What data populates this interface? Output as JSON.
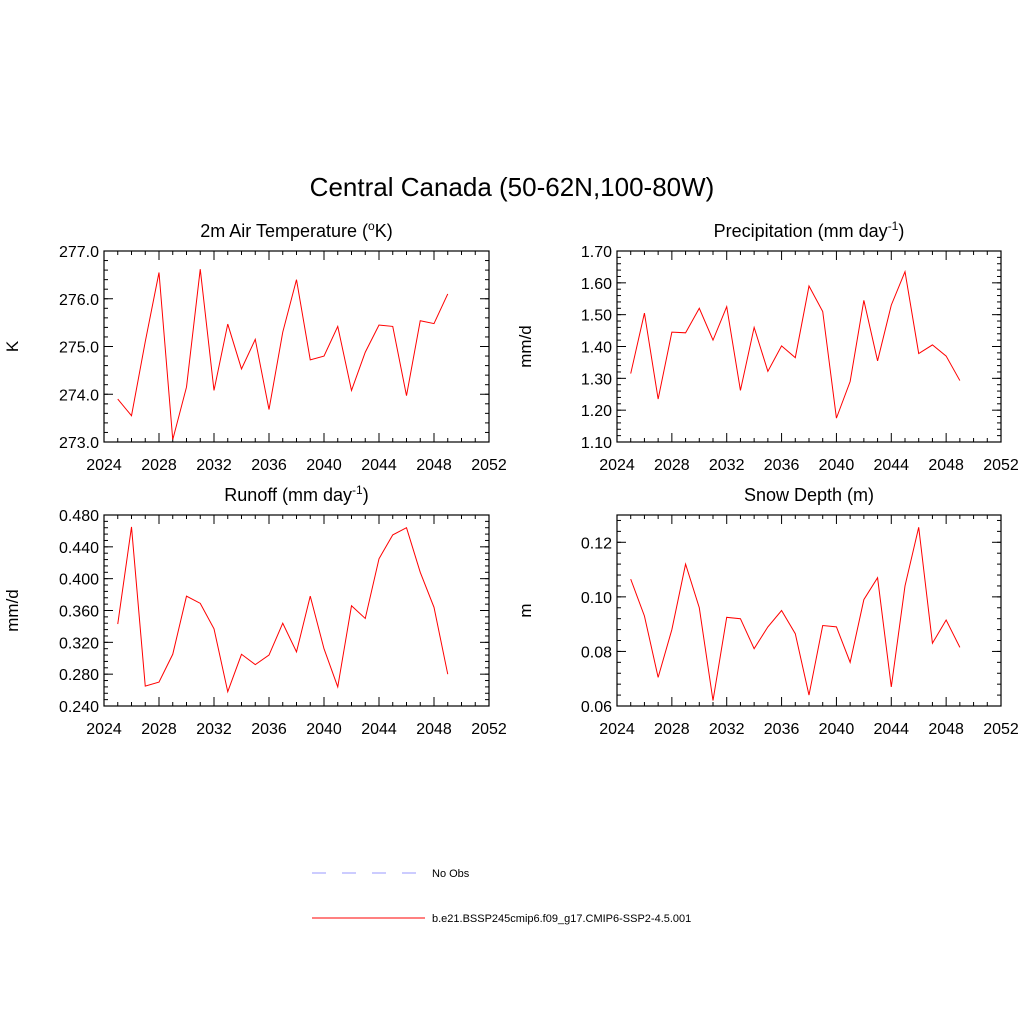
{
  "figure": {
    "title": "Central Canada (50-62N,100-80W)"
  },
  "legend": {
    "entries": [
      {
        "label": "No Obs",
        "color": "#9999ff",
        "dash": "dashed"
      },
      {
        "label": "b.e21.BSSP245cmip6.f09_g17.CMIP6-SSP2-4.5.001",
        "color": "#ff0000",
        "dash": "solid"
      }
    ]
  },
  "chart_data": [
    {
      "type": "line",
      "title": "2m Air Temperature (°K)",
      "ylabel": "K",
      "xlim": [
        2024,
        2052
      ],
      "xticks": [
        2024,
        2028,
        2032,
        2036,
        2040,
        2044,
        2048,
        2052
      ],
      "ylim": [
        273.0,
        277.0
      ],
      "yticks": [
        273.0,
        274.0,
        275.0,
        276.0,
        277.0
      ],
      "ytick_labels": [
        "273.0",
        "274.0",
        "275.0",
        "276.0",
        "277.0"
      ],
      "x": [
        2025,
        2026,
        2027,
        2028,
        2029,
        2030,
        2031,
        2032,
        2033,
        2034,
        2035,
        2036,
        2037,
        2038,
        2039,
        2040,
        2041,
        2042,
        2043,
        2044,
        2045,
        2046,
        2047,
        2048,
        2049
      ],
      "series": [
        {
          "color": "#ff0000",
          "values": [
            273.9,
            273.55,
            275.1,
            276.55,
            273.05,
            274.15,
            276.62,
            274.08,
            275.47,
            274.53,
            275.15,
            273.68,
            275.3,
            276.4,
            274.72,
            274.8,
            275.42,
            274.08,
            274.88,
            275.45,
            275.42,
            273.97,
            275.54,
            275.48,
            276.1
          ]
        }
      ]
    },
    {
      "type": "line",
      "title": "Precipitation (mm day-1)",
      "ylabel": "mm/d",
      "xlim": [
        2024,
        2052
      ],
      "xticks": [
        2024,
        2028,
        2032,
        2036,
        2040,
        2044,
        2048,
        2052
      ],
      "ylim": [
        1.1,
        1.7
      ],
      "yticks": [
        1.1,
        1.2,
        1.3,
        1.4,
        1.5,
        1.6,
        1.7
      ],
      "ytick_labels": [
        "1.10",
        "1.20",
        "1.30",
        "1.40",
        "1.50",
        "1.60",
        "1.70"
      ],
      "x": [
        2025,
        2026,
        2027,
        2028,
        2029,
        2030,
        2031,
        2032,
        2033,
        2034,
        2035,
        2036,
        2037,
        2038,
        2039,
        2040,
        2041,
        2042,
        2043,
        2044,
        2045,
        2046,
        2047,
        2048,
        2049
      ],
      "series": [
        {
          "color": "#ff0000",
          "values": [
            1.315,
            1.505,
            1.235,
            1.445,
            1.443,
            1.52,
            1.42,
            1.525,
            1.262,
            1.46,
            1.322,
            1.402,
            1.365,
            1.59,
            1.51,
            1.175,
            1.29,
            1.545,
            1.355,
            1.53,
            1.635,
            1.378,
            1.405,
            1.37,
            1.293
          ]
        }
      ]
    },
    {
      "type": "line",
      "title": "Runoff (mm day-1)",
      "ylabel": "mm/d",
      "xlim": [
        2024,
        2052
      ],
      "xticks": [
        2024,
        2028,
        2032,
        2036,
        2040,
        2044,
        2048,
        2052
      ],
      "ylim": [
        0.24,
        0.48
      ],
      "yticks": [
        0.24,
        0.28,
        0.32,
        0.36,
        0.4,
        0.44,
        0.48
      ],
      "ytick_labels": [
        "0.240",
        "0.280",
        "0.320",
        "0.360",
        "0.400",
        "0.440",
        "0.480"
      ],
      "x": [
        2025,
        2026,
        2027,
        2028,
        2029,
        2030,
        2031,
        2032,
        2033,
        2034,
        2035,
        2036,
        2037,
        2038,
        2039,
        2040,
        2041,
        2042,
        2043,
        2044,
        2045,
        2046,
        2047,
        2048,
        2049
      ],
      "series": [
        {
          "color": "#ff0000",
          "values": [
            0.343,
            0.465,
            0.265,
            0.27,
            0.305,
            0.378,
            0.369,
            0.337,
            0.258,
            0.305,
            0.292,
            0.304,
            0.344,
            0.308,
            0.378,
            0.312,
            0.264,
            0.366,
            0.35,
            0.425,
            0.455,
            0.464,
            0.408,
            0.364,
            0.28
          ]
        }
      ]
    },
    {
      "type": "line",
      "title": "Snow Depth (m)",
      "ylabel": "m",
      "xlim": [
        2024,
        2052
      ],
      "xticks": [
        2024,
        2028,
        2032,
        2036,
        2040,
        2044,
        2048,
        2052
      ],
      "ylim": [
        0.06,
        0.13
      ],
      "yticks": [
        0.06,
        0.08,
        0.1,
        0.12
      ],
      "ytick_labels": [
        "0.06",
        "0.08",
        "0.10",
        "0.12"
      ],
      "x": [
        2025,
        2026,
        2027,
        2028,
        2029,
        2030,
        2031,
        2032,
        2033,
        2034,
        2035,
        2036,
        2037,
        2038,
        2039,
        2040,
        2041,
        2042,
        2043,
        2044,
        2045,
        2046,
        2047,
        2048,
        2049
      ],
      "series": [
        {
          "color": "#ff0000",
          "values": [
            0.1065,
            0.093,
            0.0705,
            0.088,
            0.112,
            0.096,
            0.062,
            0.0925,
            0.092,
            0.081,
            0.089,
            0.095,
            0.0865,
            0.064,
            0.0895,
            0.089,
            0.076,
            0.099,
            0.107,
            0.067,
            0.104,
            0.1255,
            0.083,
            0.0915,
            0.0815
          ]
        }
      ]
    }
  ]
}
